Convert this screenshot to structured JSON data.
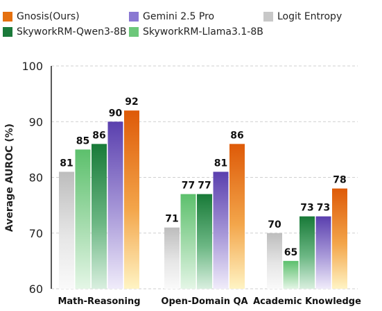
{
  "chart_data": {
    "type": "bar",
    "ylabel": "Average AUROC (%)",
    "ylim": [
      60,
      100
    ],
    "yticks": [
      60,
      70,
      80,
      90,
      100
    ],
    "grid": true,
    "legend_position": "top",
    "categories": [
      "Math-Reasoning",
      "Open-Domain QA",
      "Academic Knowledge"
    ],
    "series": [
      {
        "name": "Logit Entropy",
        "values": [
          81,
          71,
          70
        ],
        "color": "#c8c8c8"
      },
      {
        "name": "SkyworkRM-Llama3.1-8B",
        "values": [
          85,
          77,
          65
        ],
        "color": "#6cc77a"
      },
      {
        "name": "SkyworkRM-Qwen3-8B",
        "values": [
          86,
          77,
          73
        ],
        "color": "#1b7a3a"
      },
      {
        "name": "Gemini 2.5 Pro",
        "values": [
          90,
          81,
          73
        ],
        "color": "#6a4fb3"
      },
      {
        "name": "Gnosis(Ours)",
        "values": [
          92,
          86,
          78
        ],
        "color": "#e5700f"
      }
    ]
  }
}
